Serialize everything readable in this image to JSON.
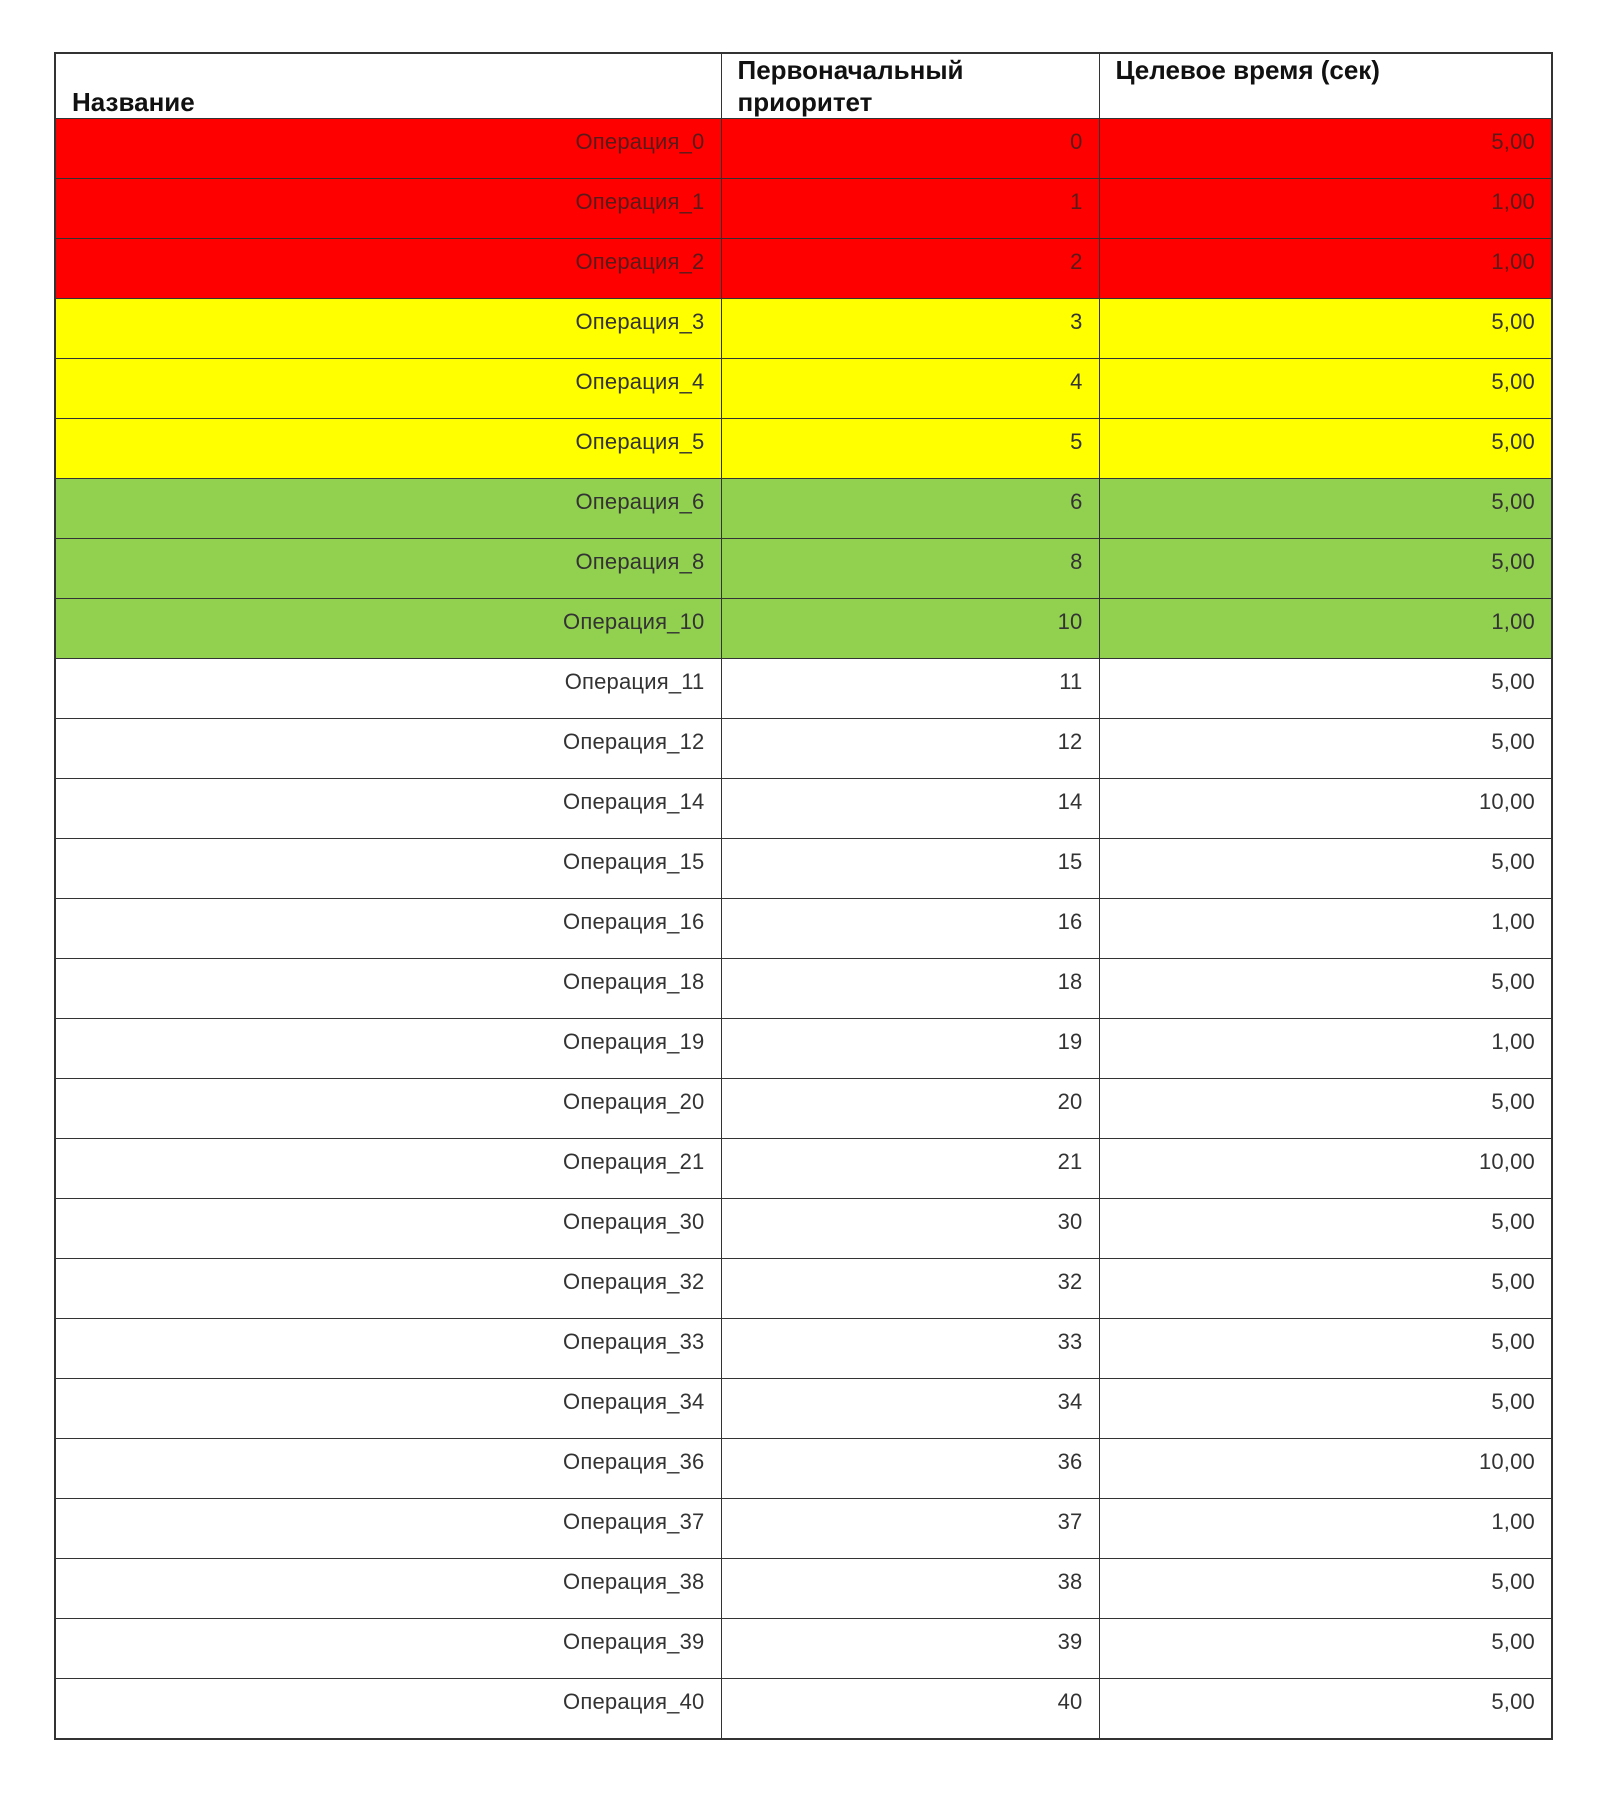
{
  "table": {
    "headers": [
      "Название",
      "Первоначальный приоритет",
      "Целевое время (сек)"
    ],
    "colors": {
      "red": "#ff0000",
      "yellow": "#ffff00",
      "green": "#92d050"
    },
    "rows": [
      {
        "name": "Операция_0",
        "priority": "0",
        "time": "5,00",
        "highlight": "red"
      },
      {
        "name": "Операция_1",
        "priority": "1",
        "time": "1,00",
        "highlight": "red"
      },
      {
        "name": "Операция_2",
        "priority": "2",
        "time": "1,00",
        "highlight": "red"
      },
      {
        "name": "Операция_3",
        "priority": "3",
        "time": "5,00",
        "highlight": "yellow"
      },
      {
        "name": "Операция_4",
        "priority": "4",
        "time": "5,00",
        "highlight": "yellow"
      },
      {
        "name": "Операция_5",
        "priority": "5",
        "time": "5,00",
        "highlight": "yellow"
      },
      {
        "name": "Операция_6",
        "priority": "6",
        "time": "5,00",
        "highlight": "green"
      },
      {
        "name": "Операция_8",
        "priority": "8",
        "time": "5,00",
        "highlight": "green"
      },
      {
        "name": "Операция_10",
        "priority": "10",
        "time": "1,00",
        "highlight": "green"
      },
      {
        "name": "Операция_11",
        "priority": "11",
        "time": "5,00",
        "highlight": "none"
      },
      {
        "name": "Операция_12",
        "priority": "12",
        "time": "5,00",
        "highlight": "none"
      },
      {
        "name": "Операция_14",
        "priority": "14",
        "time": "10,00",
        "highlight": "none"
      },
      {
        "name": "Операция_15",
        "priority": "15",
        "time": "5,00",
        "highlight": "none"
      },
      {
        "name": "Операция_16",
        "priority": "16",
        "time": "1,00",
        "highlight": "none"
      },
      {
        "name": "Операция_18",
        "priority": "18",
        "time": "5,00",
        "highlight": "none"
      },
      {
        "name": "Операция_19",
        "priority": "19",
        "time": "1,00",
        "highlight": "none"
      },
      {
        "name": "Операция_20",
        "priority": "20",
        "time": "5,00",
        "highlight": "none"
      },
      {
        "name": "Операция_21",
        "priority": "21",
        "time": "10,00",
        "highlight": "none"
      },
      {
        "name": "Операция_30",
        "priority": "30",
        "time": "5,00",
        "highlight": "none"
      },
      {
        "name": "Операция_32",
        "priority": "32",
        "time": "5,00",
        "highlight": "none"
      },
      {
        "name": "Операция_33",
        "priority": "33",
        "time": "5,00",
        "highlight": "none"
      },
      {
        "name": "Операция_34",
        "priority": "34",
        "time": "5,00",
        "highlight": "none"
      },
      {
        "name": "Операция_36",
        "priority": "36",
        "time": "10,00",
        "highlight": "none"
      },
      {
        "name": "Операция_37",
        "priority": "37",
        "time": "1,00",
        "highlight": "none"
      },
      {
        "name": "Операция_38",
        "priority": "38",
        "time": "5,00",
        "highlight": "none"
      },
      {
        "name": "Операция_39",
        "priority": "39",
        "time": "5,00",
        "highlight": "none"
      },
      {
        "name": "Операция_40",
        "priority": "40",
        "time": "5,00",
        "highlight": "none"
      }
    ]
  }
}
